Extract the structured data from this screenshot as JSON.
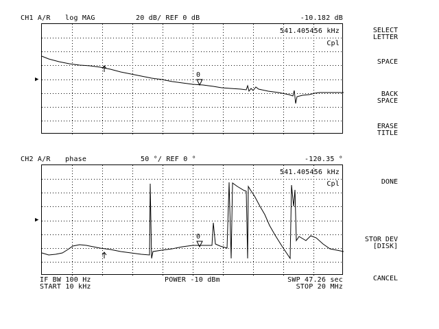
{
  "ch1": {
    "label": "CH1 A/R",
    "format": "log MAG",
    "scale": "20 dB/ REF 0 dB",
    "marker_value": "-10.182 dB",
    "marker_freq": "541.405456 kHz",
    "flag": "Cpl",
    "marker_number": "0",
    "ref_arrow": "▶"
  },
  "ch2": {
    "label": "CH2 A/R",
    "format": "phase",
    "scale": "50 °/ REF 0 °",
    "marker_value": "-120.35 °",
    "marker_freq": "541.405456 kHz",
    "flag": "Cpl",
    "marker_number": "0",
    "ref_arrow": "▶"
  },
  "footer": {
    "if_bw": "IF BW 100 Hz",
    "start": "START  10 kHz",
    "power": "POWER -10 dBm",
    "swp": "SWP  47.26 sec",
    "stop": "STOP  20 MHz"
  },
  "softkeys": [
    {
      "line1": "SELECT",
      "line2": "LETTER"
    },
    {
      "line1": "SPACE",
      "line2": ""
    },
    {
      "line1": "BACK",
      "line2": "SPACE"
    },
    {
      "line1": "ERASE",
      "line2": "TITLE"
    },
    {
      "line1": "DONE",
      "line2": ""
    },
    {
      "line1": "STOR DEV",
      "line2": "[DISK]"
    },
    {
      "line1": "CANCEL",
      "line2": ""
    }
  ],
  "colors": {
    "trace": "#000000",
    "grid": "#000000",
    "background": "#ffffff"
  }
}
